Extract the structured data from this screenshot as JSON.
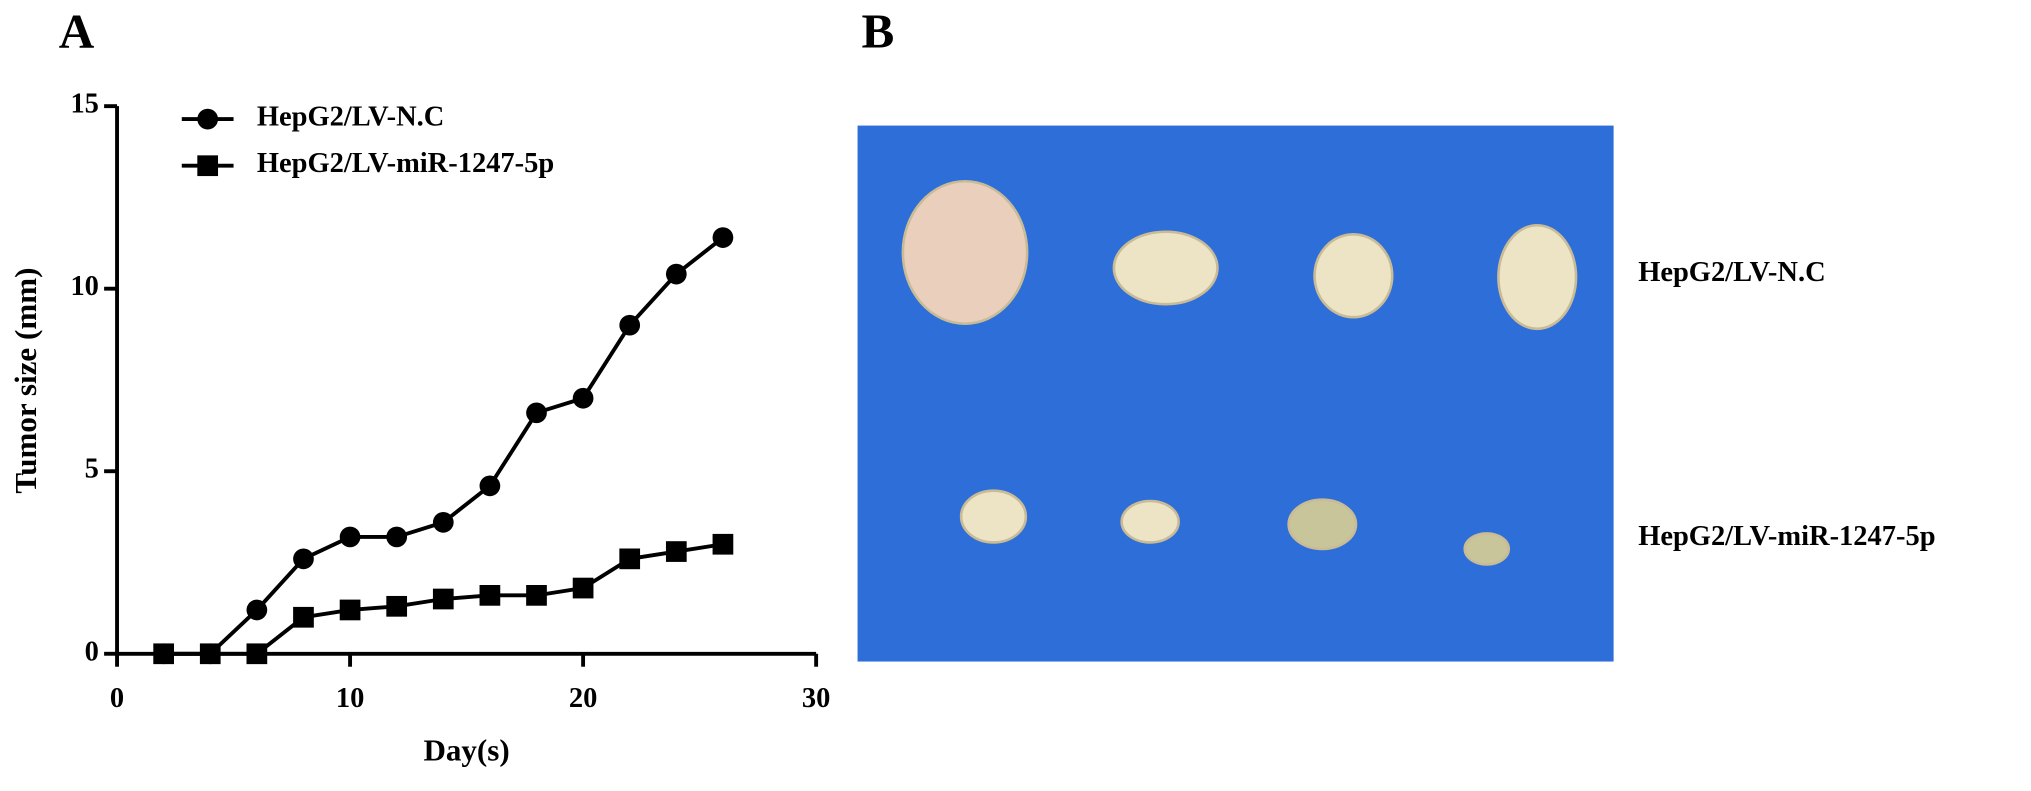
{
  "panel_labels": [
    "A",
    "B"
  ],
  "chart_data": {
    "type": "line",
    "xlabel": "Day(s)",
    "ylabel": "Tumor size (mm)",
    "x": [
      2,
      4,
      6,
      8,
      10,
      12,
      14,
      16,
      18,
      20,
      22,
      24,
      26
    ],
    "series": [
      {
        "name": "HepG2/LV-N.C",
        "color": "#000000",
        "marker": "circle",
        "values": [
          0,
          0,
          1.2,
          2.6,
          3.2,
          3.2,
          3.6,
          4.6,
          6.6,
          7.0,
          9.0,
          10.4,
          11.4
        ]
      },
      {
        "name": "HepG2/LV-miR-1247-5p",
        "color": "#000000",
        "marker": "square",
        "values": [
          0,
          0,
          0,
          1.0,
          1.2,
          1.3,
          1.5,
          1.6,
          1.6,
          1.8,
          2.6,
          2.8,
          3.0
        ]
      }
    ],
    "xlim": [
      0,
      30
    ],
    "xticks": [
      0,
      10,
      20,
      30
    ],
    "ylim": [
      0,
      15
    ],
    "yticks": [
      0,
      5,
      10,
      15
    ],
    "grid": false,
    "legend": "upper left"
  },
  "photo_labels": [
    "HepG2/LV-N.C",
    "HepG2/LV-miR-1247-5p"
  ]
}
